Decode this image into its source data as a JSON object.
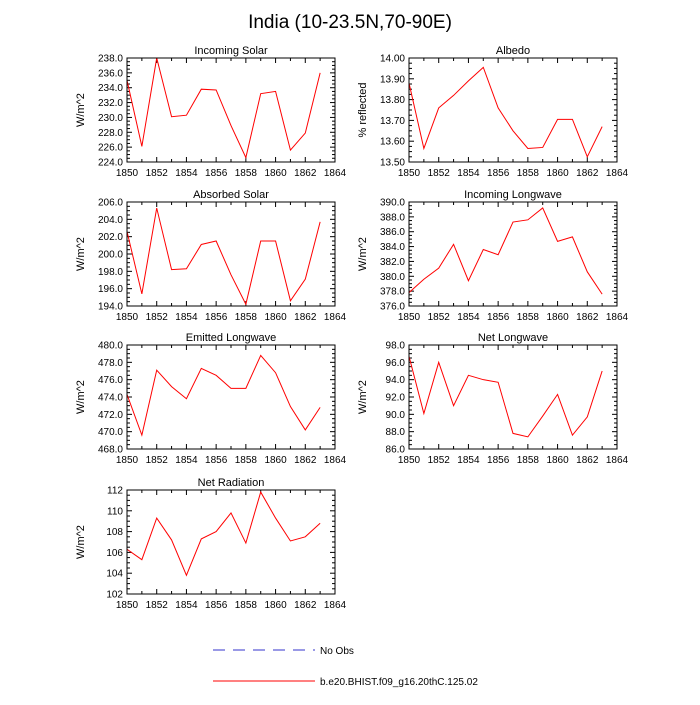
{
  "figure": {
    "title": "India (10-23.5N,70-90E)"
  },
  "legend": {
    "entries": [
      {
        "label": "No Obs",
        "color": "#3333cc",
        "style": "dashed"
      },
      {
        "label": "b.e20.BHIST.f09_g16.20thC.125.02",
        "color": "#ff0000",
        "style": "solid"
      }
    ]
  },
  "colors": {
    "series": "#ff0000",
    "obs": "#3333cc",
    "axis": "#000000"
  },
  "chart_data": [
    {
      "type": "line",
      "title": "Incoming Solar",
      "ylabel": "W/m^2",
      "xlim": [
        1850,
        1864
      ],
      "ylim": [
        224,
        238
      ],
      "xticks": [
        1850,
        1852,
        1854,
        1856,
        1858,
        1860,
        1862,
        1864
      ],
      "yticks": [
        224.0,
        226.0,
        228.0,
        230.0,
        232.0,
        234.0,
        236.0,
        238.0
      ],
      "yticklabels": [
        "224.0",
        "226.0",
        "228.0",
        "230.0",
        "232.0",
        "234.0",
        "236.0",
        "238.0"
      ],
      "x": [
        1850,
        1851,
        1852,
        1853,
        1854,
        1855,
        1856,
        1857,
        1858,
        1859,
        1860,
        1861,
        1862,
        1863
      ],
      "series": [
        {
          "name": "b.e20.BHIST.f09_g16.20thC.125.02",
          "values": [
            235.0,
            226.1,
            238.0,
            230.1,
            230.3,
            233.8,
            233.7,
            228.9,
            224.6,
            233.2,
            233.5,
            225.6,
            227.9,
            236.0
          ]
        }
      ]
    },
    {
      "type": "line",
      "title": "Albedo",
      "ylabel": "% reflected",
      "xlim": [
        1850,
        1864
      ],
      "ylim": [
        13.5,
        14.0
      ],
      "xticks": [
        1850,
        1852,
        1854,
        1856,
        1858,
        1860,
        1862,
        1864
      ],
      "yticks": [
        13.5,
        13.6,
        13.7,
        13.8,
        13.9,
        14.0
      ],
      "yticklabels": [
        "13.50",
        "13.60",
        "13.70",
        "13.80",
        "13.90",
        "14.00"
      ],
      "x": [
        1850,
        1851,
        1852,
        1853,
        1854,
        1855,
        1856,
        1857,
        1858,
        1859,
        1860,
        1861,
        1862,
        1863
      ],
      "series": [
        {
          "name": "b.e20.BHIST.f09_g16.20thC.125.02",
          "values": [
            13.88,
            13.565,
            13.76,
            13.82,
            13.89,
            13.955,
            13.76,
            13.65,
            13.565,
            13.57,
            13.705,
            13.705,
            13.525,
            13.67
          ]
        }
      ]
    },
    {
      "type": "line",
      "title": "Absorbed Solar",
      "ylabel": "W/m^2",
      "xlim": [
        1850,
        1864
      ],
      "ylim": [
        194,
        206
      ],
      "xticks": [
        1850,
        1852,
        1854,
        1856,
        1858,
        1860,
        1862,
        1864
      ],
      "yticks": [
        194.0,
        196.0,
        198.0,
        200.0,
        202.0,
        204.0,
        206.0
      ],
      "yticklabels": [
        "194.0",
        "196.0",
        "198.0",
        "200.0",
        "202.0",
        "204.0",
        "206.0"
      ],
      "x": [
        1850,
        1851,
        1852,
        1853,
        1854,
        1855,
        1856,
        1857,
        1858,
        1859,
        1860,
        1861,
        1862,
        1863
      ],
      "series": [
        {
          "name": "b.e20.BHIST.f09_g16.20thC.125.02",
          "values": [
            202.6,
            195.4,
            205.3,
            198.2,
            198.3,
            201.1,
            201.5,
            197.6,
            194.2,
            201.5,
            201.5,
            194.6,
            197.1,
            203.7
          ]
        }
      ]
    },
    {
      "type": "line",
      "title": "Incoming Longwave",
      "ylabel": "W/m^2",
      "xlim": [
        1850,
        1864
      ],
      "ylim": [
        376,
        390
      ],
      "xticks": [
        1850,
        1852,
        1854,
        1856,
        1858,
        1860,
        1862,
        1864
      ],
      "yticks": [
        376.0,
        378.0,
        380.0,
        382.0,
        384.0,
        386.0,
        388.0,
        390.0
      ],
      "yticklabels": [
        "376.0",
        "378.0",
        "380.0",
        "382.0",
        "384.0",
        "386.0",
        "388.0",
        "390.0"
      ],
      "x": [
        1850,
        1851,
        1852,
        1853,
        1854,
        1855,
        1856,
        1857,
        1858,
        1859,
        1860,
        1861,
        1862,
        1863
      ],
      "series": [
        {
          "name": "b.e20.BHIST.f09_g16.20thC.125.02",
          "values": [
            377.8,
            379.6,
            381.1,
            384.3,
            379.4,
            383.6,
            382.9,
            387.3,
            387.6,
            389.2,
            384.7,
            385.3,
            380.6,
            377.6
          ]
        }
      ]
    },
    {
      "type": "line",
      "title": "Emitted Longwave",
      "ylabel": "W/m^2",
      "xlim": [
        1850,
        1864
      ],
      "ylim": [
        468,
        480
      ],
      "xticks": [
        1850,
        1852,
        1854,
        1856,
        1858,
        1860,
        1862,
        1864
      ],
      "yticks": [
        468.0,
        470.0,
        472.0,
        474.0,
        476.0,
        478.0,
        480.0
      ],
      "yticklabels": [
        "468.0",
        "470.0",
        "472.0",
        "474.0",
        "476.0",
        "478.0",
        "480.0"
      ],
      "x": [
        1850,
        1851,
        1852,
        1853,
        1854,
        1855,
        1856,
        1857,
        1858,
        1859,
        1860,
        1861,
        1862,
        1863
      ],
      "series": [
        {
          "name": "b.e20.BHIST.f09_g16.20thC.125.02",
          "values": [
            474.3,
            469.6,
            477.1,
            475.2,
            473.8,
            477.3,
            476.5,
            475.0,
            475.0,
            478.8,
            476.8,
            472.9,
            470.2,
            472.8
          ]
        }
      ]
    },
    {
      "type": "line",
      "title": "Net Longwave",
      "ylabel": "W/m^2",
      "xlim": [
        1850,
        1864
      ],
      "ylim": [
        86,
        98
      ],
      "xticks": [
        1850,
        1852,
        1854,
        1856,
        1858,
        1860,
        1862,
        1864
      ],
      "yticks": [
        86.0,
        88.0,
        90.0,
        92.0,
        94.0,
        96.0,
        98.0
      ],
      "yticklabels": [
        "86.0",
        "88.0",
        "90.0",
        "92.0",
        "94.0",
        "96.0",
        "98.0"
      ],
      "x": [
        1850,
        1851,
        1852,
        1853,
        1854,
        1855,
        1856,
        1857,
        1858,
        1859,
        1860,
        1861,
        1862,
        1863
      ],
      "series": [
        {
          "name": "b.e20.BHIST.f09_g16.20thC.125.02",
          "values": [
            96.7,
            90.1,
            96.0,
            91.0,
            94.5,
            94.0,
            93.7,
            87.8,
            87.4,
            89.8,
            92.3,
            87.6,
            89.7,
            95.0
          ]
        }
      ]
    },
    {
      "type": "line",
      "title": "Net Radiation",
      "ylabel": "W/m^2",
      "xlim": [
        1850,
        1864
      ],
      "ylim": [
        102,
        112
      ],
      "xticks": [
        1850,
        1852,
        1854,
        1856,
        1858,
        1860,
        1862,
        1864
      ],
      "yticks": [
        102,
        104,
        106,
        108,
        110,
        112
      ],
      "yticklabels": [
        "102",
        "104",
        "106",
        "108",
        "110",
        "112"
      ],
      "x": [
        1850,
        1851,
        1852,
        1853,
        1854,
        1855,
        1856,
        1857,
        1858,
        1859,
        1860,
        1861,
        1862,
        1863
      ],
      "series": [
        {
          "name": "b.e20.BHIST.f09_g16.20thC.125.02",
          "values": [
            106.3,
            105.3,
            109.3,
            107.2,
            103.8,
            107.3,
            108.0,
            109.8,
            106.9,
            111.8,
            109.3,
            107.1,
            107.5,
            108.8
          ]
        }
      ]
    }
  ]
}
